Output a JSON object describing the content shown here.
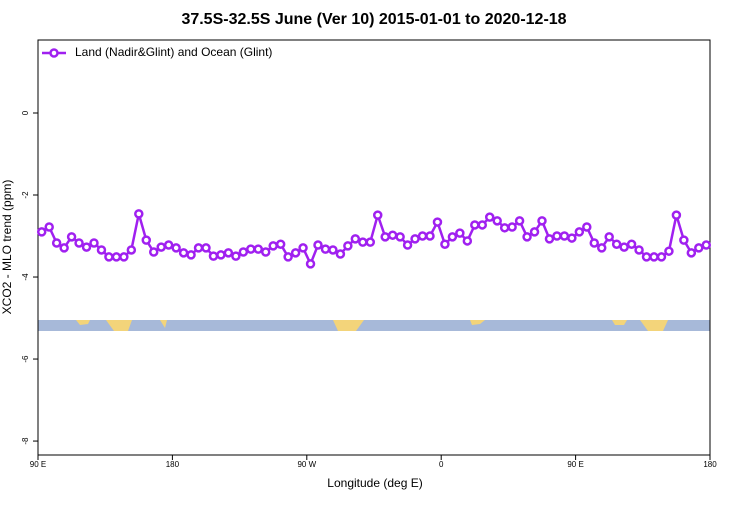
{
  "chart_data": {
    "type": "line",
    "title": "37.5S-32.5S June (Ver 10)   2015-01-01 to 2020-12-18",
    "xlabel": "Longitude (deg E)",
    "ylabel": "XCO2 - MLO trend (ppm)",
    "xlim": [
      90,
      540
    ],
    "ylim": [
      -8.34,
      1.78
    ],
    "xticks": [
      {
        "value": 90,
        "label": "90 E"
      },
      180,
      {
        "value": 270,
        "label": "90 W"
      },
      {
        "value": 360,
        "label": "0"
      },
      {
        "value": 450,
        "label": "90 E"
      },
      {
        "value": 540,
        "label": "180"
      }
    ],
    "yticks": [
      0,
      -2,
      -4,
      -6,
      -8
    ],
    "legend": "top-left",
    "x": [
      92.5,
      97.5,
      102.5,
      107.5,
      112.5,
      117.5,
      122.5,
      127.5,
      132.5,
      137.5,
      142.5,
      147.5,
      152.5,
      157.5,
      162.5,
      167.5,
      172.5,
      177.5,
      182.5,
      187.5,
      192.5,
      197.5,
      202.5,
      207.5,
      212.5,
      217.5,
      222.5,
      227.5,
      232.5,
      237.5,
      242.5,
      247.5,
      252.5,
      257.5,
      262.5,
      267.5,
      272.5,
      277.5,
      282.5,
      287.5,
      292.5,
      297.5,
      302.5,
      307.5,
      312.5,
      317.5,
      322.5,
      327.5,
      332.5,
      337.5,
      342.5,
      347.5,
      352.5,
      357.5,
      362.5,
      367.5,
      372.5,
      377.5,
      382.5,
      387.5,
      392.5,
      397.5,
      402.5,
      407.5,
      412.5,
      417.5,
      422.5,
      427.5,
      432.5,
      437.5,
      442.5,
      447.5,
      452.5,
      457.5,
      462.5,
      467.5,
      472.5,
      477.5,
      482.5,
      487.5,
      492.5,
      497.5,
      502.5,
      507.5,
      512.5,
      517.5,
      522.5,
      527.5,
      532.5,
      537.5
    ],
    "series": [
      {
        "name": "Land (Nadir&Glint) and Ocean (Glint)",
        "color": "#a020f0",
        "values": [
          -2.9,
          -2.78,
          -3.17,
          -3.29,
          -3.02,
          -3.17,
          -3.27,
          -3.17,
          -3.34,
          -3.51,
          -3.51,
          -3.51,
          -3.34,
          -2.46,
          -3.1,
          -3.39,
          -3.27,
          -3.22,
          -3.29,
          -3.41,
          -3.46,
          -3.29,
          -3.29,
          -3.49,
          -3.46,
          -3.41,
          -3.49,
          -3.39,
          -3.32,
          -3.32,
          -3.39,
          -3.24,
          -3.2,
          -3.51,
          -3.41,
          -3.29,
          -3.68,
          -3.22,
          -3.32,
          -3.34,
          -3.44,
          -3.24,
          -3.07,
          -3.15,
          -3.15,
          -2.49,
          -3.02,
          -2.98,
          -3.02,
          -3.22,
          -3.07,
          -3.0,
          -3.0,
          -2.66,
          -3.2,
          -3.02,
          -2.93,
          -3.12,
          -2.73,
          -2.73,
          -2.54,
          -2.63,
          -2.8,
          -2.78,
          -2.63,
          -3.02,
          -2.9,
          -2.63,
          -3.07,
          -3.0,
          -3.0,
          -3.05,
          -2.9,
          -2.78,
          -3.17,
          -3.29,
          -3.02,
          -3.2,
          -3.27,
          -3.2,
          -3.34,
          -3.51,
          -3.51,
          -3.51,
          -3.37,
          -2.49,
          -3.1,
          -3.41,
          -3.29,
          -3.22
        ]
      }
    ]
  }
}
